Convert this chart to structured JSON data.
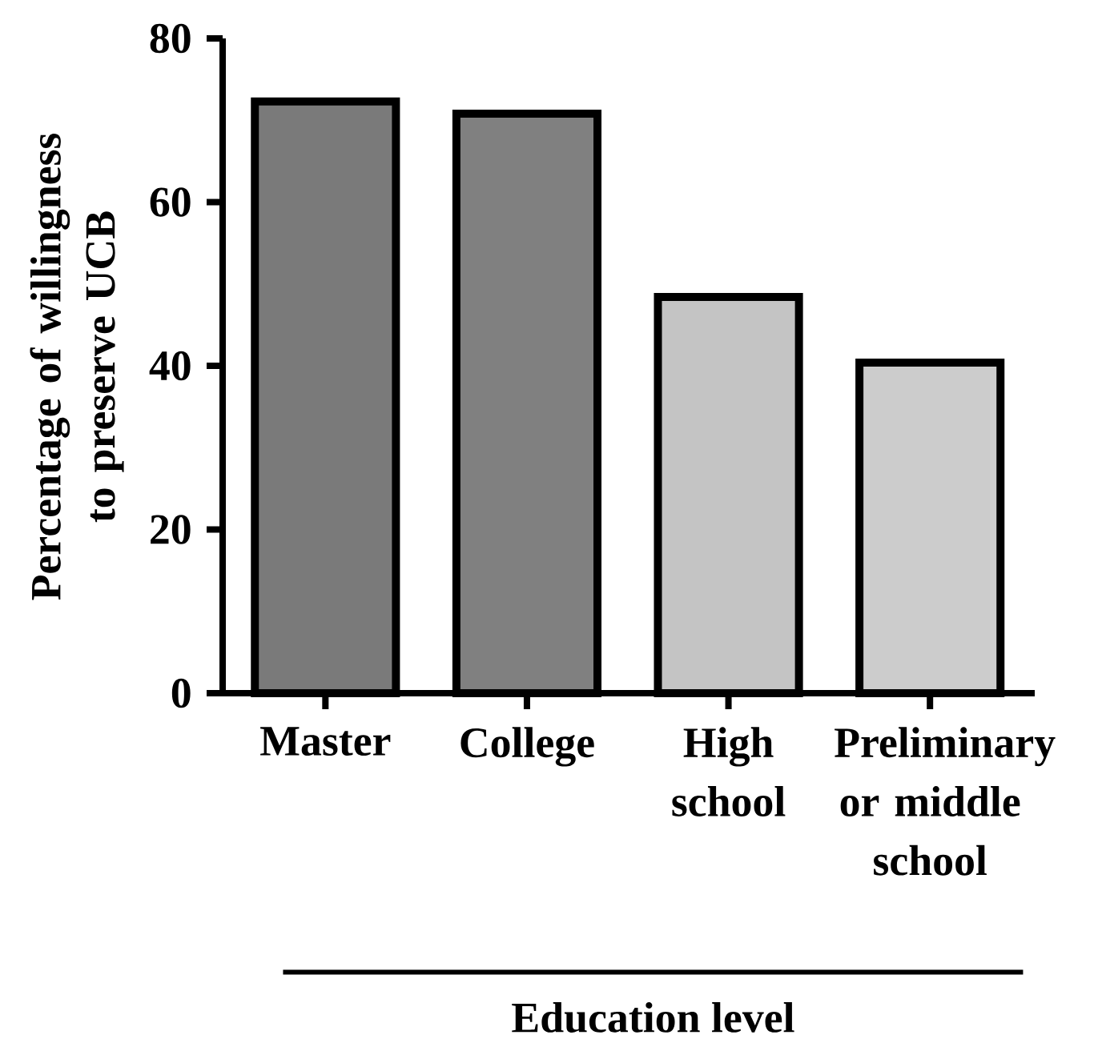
{
  "chart_data": {
    "type": "bar",
    "categories": [
      "Master",
      "College",
      "High school",
      "Preliminary or middle school"
    ],
    "values": [
      72.3,
      70.8,
      48.4,
      40.4
    ],
    "colors": [
      "#7a7a7a",
      "#808080",
      "#c4c4c4",
      "#cccccc"
    ],
    "ylabel": "Percentage of willingness to preserve UCB",
    "xlabel": "Education level",
    "ylim": [
      0,
      80
    ],
    "yticks": [
      0,
      20,
      40,
      60,
      80
    ],
    "grid": false
  }
}
